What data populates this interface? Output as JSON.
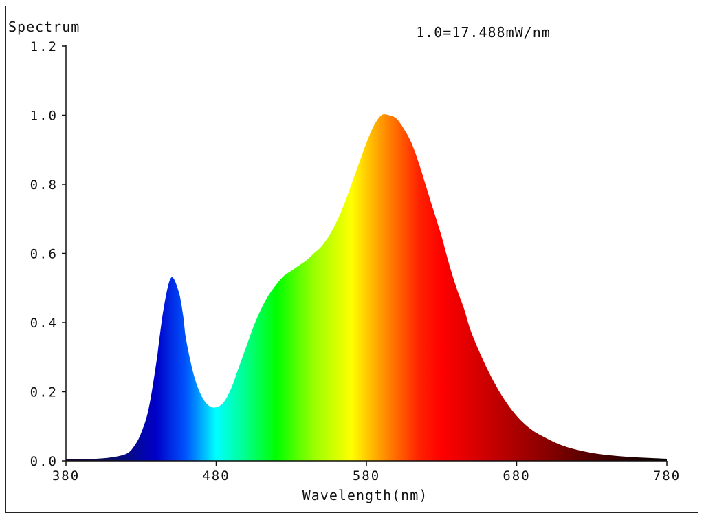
{
  "chart_data": {
    "type": "area",
    "title": "",
    "ylabel": "Spectrum",
    "xlabel": "Wavelength(nm)",
    "annotation": "1.0=17.488mW/nm",
    "xlim": [
      380,
      780
    ],
    "ylim": [
      0,
      1.2
    ],
    "x_ticks": [
      380,
      480,
      580,
      680,
      780
    ],
    "x_tick_labels": [
      "380",
      "480",
      "580",
      "680",
      "780"
    ],
    "y_ticks": [
      0,
      0.2,
      0.4,
      0.6,
      0.8,
      1.0,
      1.2
    ],
    "y_tick_labels": [
      "0.0",
      "0.2",
      "0.4",
      "0.6",
      "0.8",
      "1.0",
      "1.2"
    ],
    "grid": false,
    "fill": "visible-spectrum-gradient",
    "points": {
      "x": [
        380,
        390,
        400,
        410,
        420,
        425,
        430,
        435,
        440,
        445,
        450,
        455,
        458,
        460,
        465,
        470,
        475,
        480,
        485,
        490,
        495,
        500,
        505,
        510,
        515,
        520,
        525,
        530,
        535,
        540,
        545,
        550,
        555,
        560,
        565,
        570,
        575,
        580,
        585,
        590,
        595,
        600,
        605,
        610,
        615,
        620,
        625,
        630,
        635,
        640,
        645,
        650,
        660,
        670,
        680,
        690,
        700,
        710,
        720,
        730,
        740,
        750,
        760,
        770,
        780
      ],
      "y": [
        0.005,
        0.005,
        0.006,
        0.01,
        0.02,
        0.04,
        0.08,
        0.15,
        0.28,
        0.44,
        0.53,
        0.49,
        0.42,
        0.35,
        0.25,
        0.19,
        0.16,
        0.155,
        0.17,
        0.21,
        0.27,
        0.33,
        0.39,
        0.44,
        0.48,
        0.51,
        0.535,
        0.55,
        0.565,
        0.58,
        0.6,
        0.62,
        0.65,
        0.69,
        0.74,
        0.8,
        0.86,
        0.92,
        0.97,
        1.0,
        1.0,
        0.99,
        0.96,
        0.92,
        0.86,
        0.79,
        0.72,
        0.65,
        0.57,
        0.5,
        0.44,
        0.37,
        0.27,
        0.19,
        0.13,
        0.09,
        0.065,
        0.045,
        0.032,
        0.023,
        0.017,
        0.013,
        0.01,
        0.008,
        0.006
      ]
    },
    "fill_color_stops": [
      {
        "x": 380,
        "color": "#1a0030"
      },
      {
        "x": 410,
        "color": "#0a1060"
      },
      {
        "x": 440,
        "color": "#0000c8"
      },
      {
        "x": 460,
        "color": "#0055ff"
      },
      {
        "x": 480,
        "color": "#00ffff"
      },
      {
        "x": 500,
        "color": "#00ff88"
      },
      {
        "x": 520,
        "color": "#00ff00"
      },
      {
        "x": 545,
        "color": "#99ff00"
      },
      {
        "x": 570,
        "color": "#ffff00"
      },
      {
        "x": 590,
        "color": "#ff9900"
      },
      {
        "x": 615,
        "color": "#ff2200"
      },
      {
        "x": 630,
        "color": "#ff0000"
      },
      {
        "x": 660,
        "color": "#cc0000"
      },
      {
        "x": 700,
        "color": "#880000"
      },
      {
        "x": 740,
        "color": "#400000"
      },
      {
        "x": 780,
        "color": "#000000"
      }
    ]
  }
}
